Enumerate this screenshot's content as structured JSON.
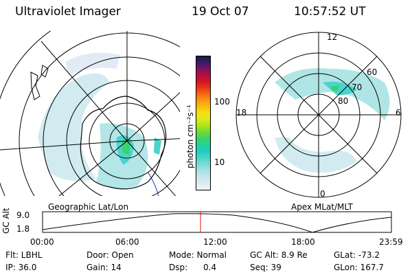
{
  "header": {
    "instrument": "Ultraviolet Imager",
    "date": "19 Oct 07",
    "time": "10:57:52 UT"
  },
  "colorbar": {
    "unit_label": "photon cm⁻²s⁻¹",
    "tick_labels": [
      "100",
      "10"
    ],
    "colors": [
      "#f4f4f4",
      "#dfe9f4",
      "#c6e6ee",
      "#a6e2e2",
      "#7cdcd6",
      "#4cd4cc",
      "#22ccc4",
      "#22d29c",
      "#3ad26c",
      "#6ada3c",
      "#a6e41a",
      "#d8ea1a",
      "#f4e214",
      "#f8c012",
      "#f89c12",
      "#f46c12",
      "#ec3818",
      "#d41424",
      "#b4103c",
      "#7c1462",
      "#3e1a6a",
      "#1a1a3a"
    ]
  },
  "left_map": {
    "label": "Geographic Lat/Lon"
  },
  "right_map": {
    "label": "Apex MLat/MLT",
    "mlt_labels": {
      "top": "12",
      "left": "18",
      "right": "6",
      "bottom": "0"
    },
    "lat_labels": [
      "60",
      "70",
      "80"
    ]
  },
  "altitude_plot": {
    "ylabel": "GC Alt",
    "yticks": [
      "9.0",
      "1.8"
    ],
    "xticks": [
      "00:00",
      "06:00",
      "12:00",
      "18:00",
      "23:59"
    ],
    "current_time_color": "#e01010"
  },
  "info": {
    "row1": {
      "flt": "Flt: LBHL",
      "door": "Door: Open",
      "mode": "Mode: Normal",
      "gcalt": "GC Alt: 8.9 Re",
      "glat": "GLat: -73.2"
    },
    "row2": {
      "ip": "IP: 36.0",
      "gain": "Gain: 14",
      "dsp": "Dsp:      0.4",
      "seq": "Seq: 39",
      "glon": "GLon: 167.7"
    }
  }
}
